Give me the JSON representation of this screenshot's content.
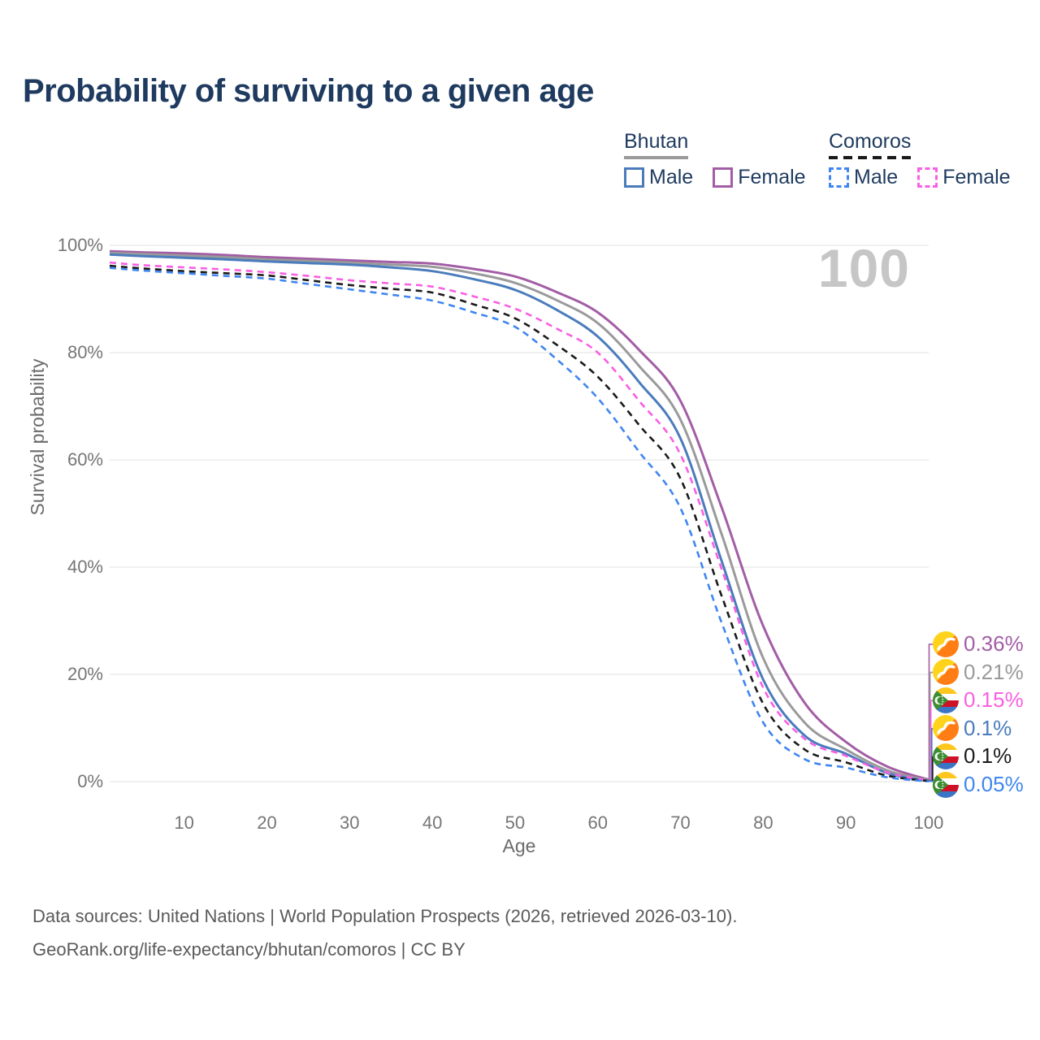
{
  "title": "Probability of surviving to a given age",
  "watermark": "100",
  "colors": {
    "title_text": "#1e3a5f",
    "axis_text": "#767676",
    "grid": "#ebebeb",
    "watermark": "#c6c6c6",
    "bhutan_male": "#4a7cbc",
    "bhutan_female": "#a35da5",
    "bhutan_all": "#9a9a9a",
    "comoros_male": "#3f86f0",
    "comoros_female": "#f95fe2",
    "comoros_all": "#1a1a1a"
  },
  "legend": {
    "groups": [
      {
        "name": "Bhutan",
        "rule_color": "#9a9a9a",
        "rule_style": "solid",
        "items": [
          {
            "label": "Male",
            "color": "#4a7cbc",
            "style": "solid"
          },
          {
            "label": "Female",
            "color": "#a35da5",
            "style": "solid"
          }
        ]
      },
      {
        "name": "Comoros",
        "rule_color": "#1a1a1a",
        "rule_style": "dashed",
        "items": [
          {
            "label": "Male",
            "color": "#3f86f0",
            "style": "dashed"
          },
          {
            "label": "Female",
            "color": "#f95fe2",
            "style": "dashed"
          }
        ]
      }
    ]
  },
  "chart_data": {
    "type": "line",
    "title": "Probability of surviving to a given age",
    "xlabel": "Age",
    "ylabel": "Survival probability",
    "xlim": [
      1,
      100
    ],
    "ylim": [
      0,
      100
    ],
    "x_ticks": [
      10,
      20,
      30,
      40,
      50,
      60,
      70,
      80,
      90,
      100
    ],
    "y_ticks": [
      0,
      20,
      40,
      60,
      80,
      100
    ],
    "y_tick_suffix": "%",
    "grid": true,
    "legend_position": "top-right",
    "x": [
      1,
      5,
      10,
      15,
      20,
      25,
      30,
      35,
      40,
      45,
      50,
      55,
      60,
      65,
      70,
      75,
      80,
      85,
      90,
      95,
      100
    ],
    "series": [
      {
        "name": "Bhutan Female",
        "country": "Bhutan",
        "sex": "Female",
        "flag": "bhutan",
        "color": "#a35da5",
        "line_style": "solid",
        "end_label": "0.36%",
        "values": [
          98.9,
          98.7,
          98.5,
          98.2,
          97.8,
          97.5,
          97.2,
          96.9,
          96.6,
          95.6,
          94.2,
          91.3,
          87.5,
          80.5,
          71.0,
          51.0,
          29.0,
          14.7,
          7.4,
          2.8,
          0.36
        ]
      },
      {
        "name": "Bhutan All",
        "country": "Bhutan",
        "sex": "All",
        "flag": "bhutan",
        "color": "#9a9a9a",
        "line_style": "solid",
        "end_label": "0.21%",
        "values": [
          98.6,
          98.4,
          98.1,
          97.8,
          97.4,
          97.1,
          96.8,
          96.4,
          96.0,
          94.8,
          93.0,
          89.8,
          85.5,
          77.5,
          67.5,
          46.0,
          23.0,
          11.0,
          6.0,
          2.1,
          0.21
        ]
      },
      {
        "name": "Bhutan Male",
        "country": "Bhutan",
        "sex": "Male",
        "flag": "bhutan",
        "color": "#4a7cbc",
        "line_style": "solid",
        "end_label": "0.1%",
        "values": [
          98.3,
          98.0,
          97.7,
          97.4,
          97.0,
          96.7,
          96.4,
          95.9,
          95.2,
          93.7,
          91.7,
          88.0,
          83.0,
          74.5,
          64.0,
          41.0,
          19.0,
          8.6,
          5.2,
          1.6,
          0.1
        ]
      },
      {
        "name": "Comoros Female",
        "country": "Comoros",
        "sex": "Female",
        "flag": "comoros",
        "color": "#f95fe2",
        "line_style": "dashed",
        "end_label": "0.15%",
        "values": [
          96.8,
          96.3,
          95.9,
          95.5,
          95.0,
          94.3,
          93.5,
          92.9,
          92.3,
          90.5,
          88.2,
          84.5,
          80.0,
          71.0,
          61.0,
          39.5,
          17.5,
          8.0,
          4.8,
          1.7,
          0.15
        ]
      },
      {
        "name": "Comoros All",
        "country": "Comoros",
        "sex": "All",
        "flag": "comoros",
        "color": "#1a1a1a",
        "line_style": "dashed",
        "end_label": "0.1%",
        "values": [
          96.2,
          95.7,
          95.2,
          94.8,
          94.4,
          93.5,
          92.6,
          91.9,
          91.2,
          89.0,
          86.4,
          81.5,
          75.5,
          66.5,
          56.5,
          34.5,
          14.5,
          6.0,
          3.6,
          1.1,
          0.1
        ]
      },
      {
        "name": "Comoros Male",
        "country": "Comoros",
        "sex": "Male",
        "flag": "comoros",
        "color": "#3f86f0",
        "line_style": "dashed",
        "end_label": "0.05%",
        "values": [
          95.8,
          95.3,
          94.8,
          94.3,
          93.8,
          92.8,
          91.8,
          90.8,
          89.7,
          87.5,
          84.8,
          78.8,
          71.5,
          61.5,
          51.0,
          29.5,
          11.0,
          4.2,
          2.6,
          0.8,
          0.05
        ]
      }
    ]
  },
  "footer": {
    "line1": "Data sources: United Nations | World Population Prospects (2026, retrieved 2026-03-10).",
    "line2": "GeoRank.org/life-expectancy/bhutan/comoros | CC BY"
  }
}
